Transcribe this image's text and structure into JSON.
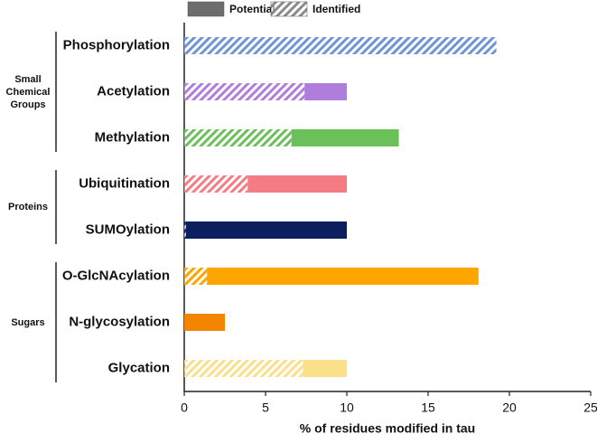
{
  "chart_data": {
    "type": "hbar-stacked",
    "categories": [
      "Phosphorylation",
      "Acetylation",
      "Methylation",
      "Ubiquitination",
      "SUMOylation",
      "O-GlcNAcylation",
      "N-glycosylation",
      "Glycation"
    ],
    "groups": [
      "Small Chemical Groups",
      "Proteins",
      "Sugars"
    ],
    "bar_colors": [
      "#6f95d6",
      "#b07ddd",
      "#6cc05a",
      "#f57c82",
      "#0b1f5e",
      "#ffa500",
      "#f58400",
      "#fbe08a"
    ],
    "series": [
      {
        "name": "Identified",
        "color": "#8a8a8a",
        "hatched": true,
        "values": [
          19.2,
          7.4,
          6.6,
          3.9,
          0.1,
          1.4,
          0,
          7.3
        ]
      },
      {
        "name": "Potential",
        "color": "#6d6d6d",
        "hatched": false,
        "values": [
          0,
          2.6,
          6.6,
          6.1,
          9.9,
          16.7,
          2.5,
          2.7
        ]
      }
    ],
    "x_label": "% of residues modified in tau",
    "xlim": [
      0,
      25
    ],
    "xticks": [
      0,
      5,
      10,
      15,
      20,
      25
    ],
    "grid": false,
    "legend": "top"
  }
}
